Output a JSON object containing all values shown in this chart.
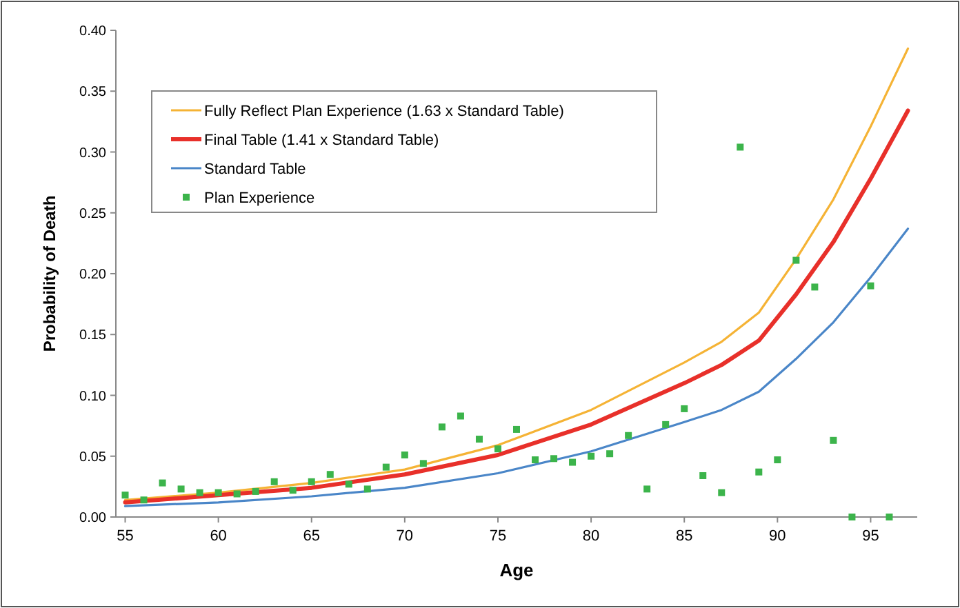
{
  "chart_data": {
    "type": "line",
    "xlabel": "Age",
    "ylabel": "Probability of Death",
    "xlim": [
      54.5,
      97.5
    ],
    "xticks": [
      55,
      60,
      65,
      70,
      75,
      80,
      85,
      90,
      95
    ],
    "ylim": [
      0,
      0.4
    ],
    "yticks": [
      {
        "value": 0,
        "label": "0.00"
      },
      {
        "value": 0.05,
        "label": "0.05"
      },
      {
        "value": 0.1,
        "label": "0.10"
      },
      {
        "value": 0.15,
        "label": "0.15"
      },
      {
        "value": 0.2,
        "label": "0.20"
      },
      {
        "value": 0.25,
        "label": "0.25"
      },
      {
        "value": 0.3,
        "label": "0.30"
      },
      {
        "value": 0.35,
        "label": "0.35"
      },
      {
        "value": 0.4,
        "label": "0.40"
      }
    ],
    "grid": false,
    "legend": "top left",
    "series": [
      {
        "name": "Fully Reflect Plan Experience (1.63 x Standard Table)",
        "color": "#f5b335",
        "marker": "none",
        "x": [
          55,
          60,
          65,
          70,
          75,
          80,
          85,
          87,
          89,
          91,
          93,
          95,
          97
        ],
        "values": [
          0.014,
          0.02,
          0.028,
          0.039,
          0.059,
          0.088,
          0.127,
          0.144,
          0.168,
          0.212,
          0.261,
          0.321,
          0.385
        ]
      },
      {
        "name": "Final Table (1.41 x Standard Table)",
        "color": "#e8302a",
        "marker": "none",
        "x": [
          55,
          60,
          65,
          70,
          75,
          80,
          85,
          87,
          89,
          91,
          93,
          95,
          97
        ],
        "values": [
          0.012,
          0.018,
          0.024,
          0.035,
          0.051,
          0.076,
          0.11,
          0.125,
          0.145,
          0.183,
          0.226,
          0.278,
          0.334
        ]
      },
      {
        "name": "Standard Table",
        "color": "#4a86c8",
        "marker": "none",
        "x": [
          55,
          60,
          65,
          70,
          75,
          80,
          85,
          87,
          89,
          91,
          93,
          95,
          97
        ],
        "values": [
          0.009,
          0.012,
          0.017,
          0.024,
          0.036,
          0.054,
          0.078,
          0.088,
          0.103,
          0.13,
          0.16,
          0.197,
          0.237
        ]
      },
      {
        "name": "Plan Experience",
        "type": "scatter",
        "color": "#3cb44b",
        "marker": "square",
        "x": [
          55,
          56,
          57,
          58,
          59,
          60,
          61,
          62,
          63,
          64,
          65,
          66,
          67,
          68,
          69,
          70,
          71,
          72,
          73,
          74,
          75,
          76,
          77,
          78,
          79,
          80,
          81,
          82,
          83,
          84,
          85,
          86,
          87,
          88,
          89,
          90,
          91,
          92,
          93,
          94,
          95,
          96
        ],
        "values": [
          0.018,
          0.014,
          0.028,
          0.023,
          0.02,
          0.02,
          0.019,
          0.021,
          0.029,
          0.022,
          0.029,
          0.035,
          0.027,
          0.023,
          0.041,
          0.051,
          0.044,
          0.074,
          0.083,
          0.064,
          0.056,
          0.072,
          0.047,
          0.048,
          0.045,
          0.05,
          0.052,
          0.067,
          0.023,
          0.076,
          0.089,
          0.034,
          0.02,
          0.304,
          0.037,
          0.047,
          0.211,
          0.189,
          0.063,
          0,
          0.19,
          0
        ]
      }
    ]
  }
}
